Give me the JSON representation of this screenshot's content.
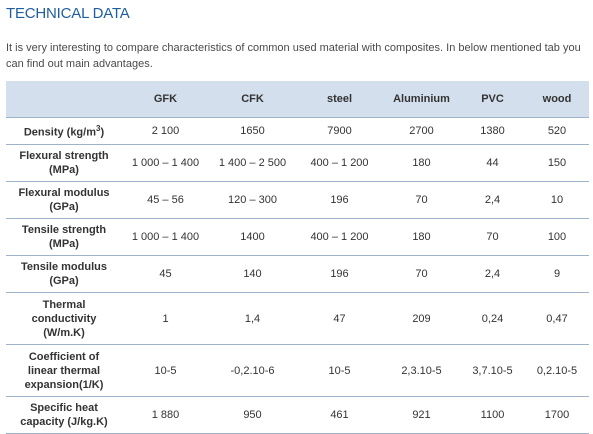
{
  "heading": "TECHNICAL DATA",
  "intro": "It is very interesting to compare characteristics of common used material with composites. In below mentioned tab you can find out main advantages.",
  "table": {
    "columns": [
      "GFK",
      "CFK",
      "steel",
      "Aluminium",
      "PVC",
      "wood"
    ],
    "rows": [
      {
        "label": [
          "Density (kg/m",
          "3",
          ")"
        ],
        "values": [
          "2 100",
          "1650",
          "7900",
          "2700",
          "1380",
          "520"
        ]
      },
      {
        "label": [
          "Flexural strength",
          "(MPa)"
        ],
        "values": [
          "1 000 – 1 400",
          "1 400 – 2 500",
          "400 – 1 200",
          "180",
          "44",
          "150"
        ]
      },
      {
        "label": [
          "Flexural modulus",
          "(GPa)"
        ],
        "values": [
          "45 – 56",
          "120 – 300",
          "196",
          "70",
          "2,4",
          "10"
        ]
      },
      {
        "label": [
          "Tensile strength",
          "(MPa)"
        ],
        "values": [
          "1 000 – 1 400",
          "1400",
          "400 – 1 200",
          "180",
          "70",
          "100"
        ]
      },
      {
        "label": [
          "Tensile modulus",
          "(GPa)"
        ],
        "values": [
          "45",
          "140",
          "196",
          "70",
          "2,4",
          "9"
        ]
      },
      {
        "label": [
          "Thermal",
          "conductivity",
          "(W/m.K)"
        ],
        "values": [
          "1",
          "1,4",
          "47",
          "209",
          "0,24",
          "0,47"
        ]
      },
      {
        "label": [
          "Coefficient of",
          "linear thermal",
          "expansion(1/K)"
        ],
        "values": [
          "10-5",
          "-0,2.10-6",
          "10-5",
          "2,3.10-5",
          "3,7.10-5",
          "0,2.10-5"
        ]
      },
      {
        "label": [
          "Specific heat",
          "capacity (J/kg.K)"
        ],
        "values": [
          "1 880",
          "950",
          "461",
          "921",
          "1100",
          "1700"
        ]
      }
    ]
  }
}
